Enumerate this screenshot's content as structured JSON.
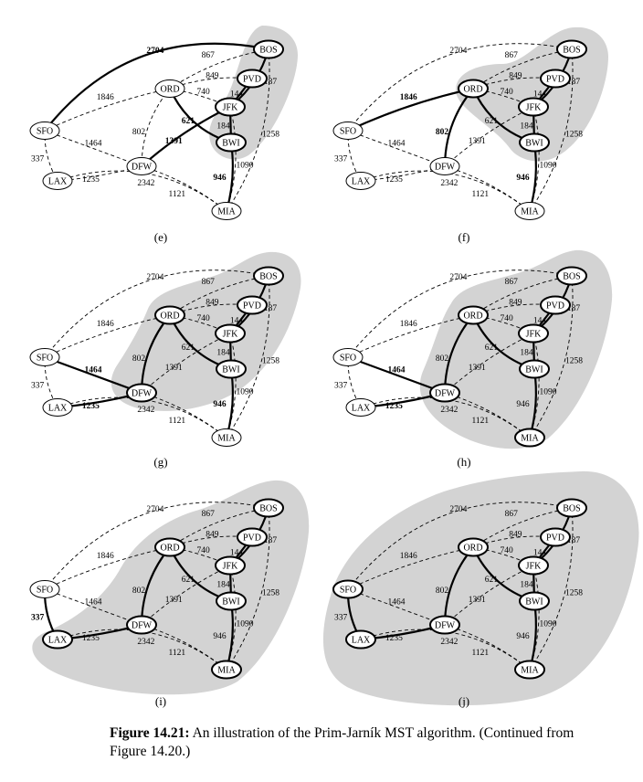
{
  "figure": {
    "nodes": [
      {
        "id": "BOS",
        "label": "BOS"
      },
      {
        "id": "PVD",
        "label": "PVD"
      },
      {
        "id": "ORD",
        "label": "ORD"
      },
      {
        "id": "JFK",
        "label": "JFK"
      },
      {
        "id": "BWI",
        "label": "BWI"
      },
      {
        "id": "SFO",
        "label": "SFO"
      },
      {
        "id": "DFW",
        "label": "DFW"
      },
      {
        "id": "LAX",
        "label": "LAX"
      },
      {
        "id": "MIA",
        "label": "MIA"
      }
    ],
    "edges": [
      {
        "id": "SFO-BOS",
        "a": "SFO",
        "b": "BOS",
        "weight": "2704"
      },
      {
        "id": "ORD-BOS",
        "a": "ORD",
        "b": "BOS",
        "weight": "867"
      },
      {
        "id": "ORD-PVD",
        "a": "ORD",
        "b": "PVD",
        "weight": "849"
      },
      {
        "id": "ORD-JFK",
        "a": "ORD",
        "b": "JFK",
        "weight": "740"
      },
      {
        "id": "ORD-BWI",
        "a": "ORD",
        "b": "BWI",
        "weight": "621"
      },
      {
        "id": "PVD-JFK",
        "a": "PVD",
        "b": "JFK",
        "weight": "144"
      },
      {
        "id": "BOS-JFK",
        "a": "BOS",
        "b": "JFK",
        "weight": "187"
      },
      {
        "id": "BOS-MIA",
        "a": "BOS",
        "b": "MIA",
        "weight": "1258"
      },
      {
        "id": "JFK-BWI",
        "a": "JFK",
        "b": "BWI",
        "weight": "184"
      },
      {
        "id": "JFK-MIA",
        "a": "JFK",
        "b": "MIA",
        "weight": "1090"
      },
      {
        "id": "SFO-ORD",
        "a": "SFO",
        "b": "ORD",
        "weight": "1846"
      },
      {
        "id": "ORD-DFW",
        "a": "ORD",
        "b": "DFW",
        "weight": "802"
      },
      {
        "id": "DFW-JFK",
        "a": "DFW",
        "b": "JFK",
        "weight": "1391"
      },
      {
        "id": "SFO-DFW",
        "a": "SFO",
        "b": "DFW",
        "weight": "1464"
      },
      {
        "id": "SFO-LAX",
        "a": "SFO",
        "b": "LAX",
        "weight": "337"
      },
      {
        "id": "LAX-DFW",
        "a": "LAX",
        "b": "DFW",
        "weight": "1235"
      },
      {
        "id": "DFW-MIA",
        "a": "DFW",
        "b": "MIA",
        "weight": "1121"
      },
      {
        "id": "BWI-MIA",
        "a": "BWI",
        "b": "MIA",
        "weight": "946"
      },
      {
        "id": "LAX-MIA",
        "a": "LAX",
        "b": "MIA",
        "weight": "2342"
      }
    ],
    "panels": [
      {
        "label": "(e)",
        "cloud": [
          "BOS",
          "PVD",
          "JFK",
          "BWI"
        ],
        "tree": [
          "BOS-JFK",
          "PVD-JFK",
          "JFK-BWI",
          "ORD-BWI",
          "BWI-MIA",
          "DFW-JFK",
          "SFO-BOS"
        ],
        "bold_weights": [
          "621",
          "1391",
          "946",
          "2704"
        ]
      },
      {
        "label": "(f)",
        "cloud": [
          "BOS",
          "PVD",
          "JFK",
          "BWI",
          "ORD"
        ],
        "tree": [
          "BOS-JFK",
          "PVD-JFK",
          "JFK-BWI",
          "ORD-BWI",
          "BWI-MIA",
          "ORD-DFW",
          "SFO-ORD"
        ],
        "bold_weights": [
          "802",
          "946",
          "1846"
        ]
      },
      {
        "label": "(g)",
        "cloud": [
          "BOS",
          "PVD",
          "JFK",
          "BWI",
          "ORD",
          "DFW"
        ],
        "tree": [
          "BOS-JFK",
          "PVD-JFK",
          "JFK-BWI",
          "ORD-BWI",
          "BWI-MIA",
          "ORD-DFW",
          "SFO-DFW",
          "LAX-DFW"
        ],
        "bold_weights": [
          "946",
          "1464",
          "1235"
        ]
      },
      {
        "label": "(h)",
        "cloud": [
          "BOS",
          "PVD",
          "JFK",
          "BWI",
          "ORD",
          "DFW",
          "MIA"
        ],
        "tree": [
          "BOS-JFK",
          "PVD-JFK",
          "JFK-BWI",
          "ORD-BWI",
          "BWI-MIA",
          "ORD-DFW",
          "SFO-DFW",
          "LAX-DFW"
        ],
        "bold_weights": [
          "1464",
          "1235"
        ]
      },
      {
        "label": "(i)",
        "cloud": [
          "BOS",
          "PVD",
          "JFK",
          "BWI",
          "ORD",
          "DFW",
          "MIA",
          "LAX"
        ],
        "tree": [
          "BOS-JFK",
          "PVD-JFK",
          "JFK-BWI",
          "ORD-BWI",
          "BWI-MIA",
          "ORD-DFW",
          "LAX-DFW",
          "SFO-LAX"
        ],
        "bold_weights": [
          "337"
        ]
      },
      {
        "label": "(j)",
        "cloud": [
          "BOS",
          "PVD",
          "JFK",
          "BWI",
          "ORD",
          "DFW",
          "MIA",
          "LAX",
          "SFO"
        ],
        "tree": [
          "BOS-JFK",
          "PVD-JFK",
          "JFK-BWI",
          "ORD-BWI",
          "BWI-MIA",
          "ORD-DFW",
          "LAX-DFW",
          "SFO-LAX"
        ],
        "bold_weights": []
      }
    ]
  },
  "caption": {
    "prefix": "Figure 14.21:",
    "text": " An illustration of the Prim-Jarník MST algorithm. (Continued from Figure 14.20.)"
  }
}
